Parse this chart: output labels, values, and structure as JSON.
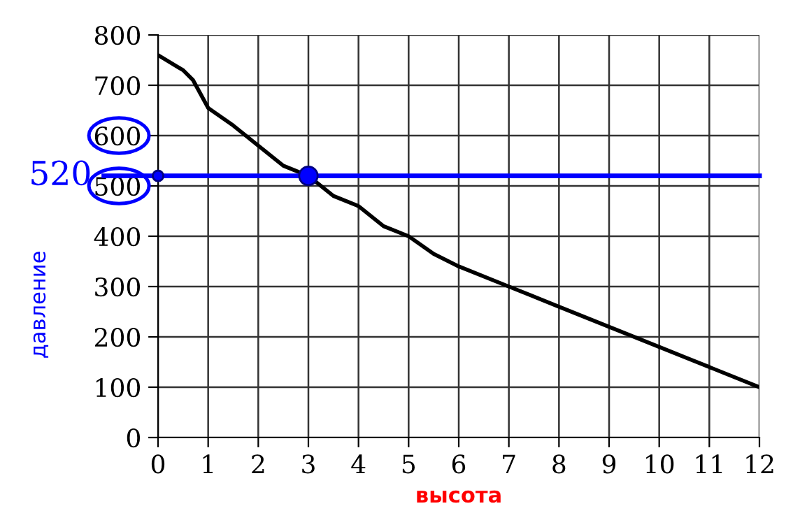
{
  "chart_data": {
    "type": "line",
    "xlabel": "высота",
    "ylabel": "давление",
    "xlim": [
      0,
      12
    ],
    "ylim": [
      0,
      800
    ],
    "xticks": [
      0,
      1,
      2,
      3,
      4,
      5,
      6,
      7,
      8,
      9,
      10,
      11,
      12
    ],
    "yticks": [
      0,
      100,
      200,
      300,
      400,
      500,
      600,
      700,
      800
    ],
    "grid": true,
    "line_style": "solid",
    "series": [
      {
        "color": "#000000",
        "marker": "none",
        "x": [
          0,
          0.5,
          0.7,
          1,
          1.5,
          2,
          2.5,
          3,
          3.5,
          4,
          4.5,
          5,
          5.5,
          6,
          7,
          8,
          9,
          10,
          11,
          12
        ],
        "values": [
          760,
          730,
          710,
          655,
          620,
          580,
          540,
          520,
          480,
          460,
          420,
          400,
          365,
          340,
          300,
          260,
          220,
          180,
          140,
          100
        ]
      },
      {
        "type": "scatter",
        "marker": "circle",
        "color": "#0000ff",
        "x": [
          0,
          3
        ],
        "values": [
          520,
          520
        ]
      }
    ],
    "ref_lines": [
      {
        "axis": "y",
        "value": 520,
        "label": "520",
        "color": "#0000ff"
      }
    ]
  }
}
